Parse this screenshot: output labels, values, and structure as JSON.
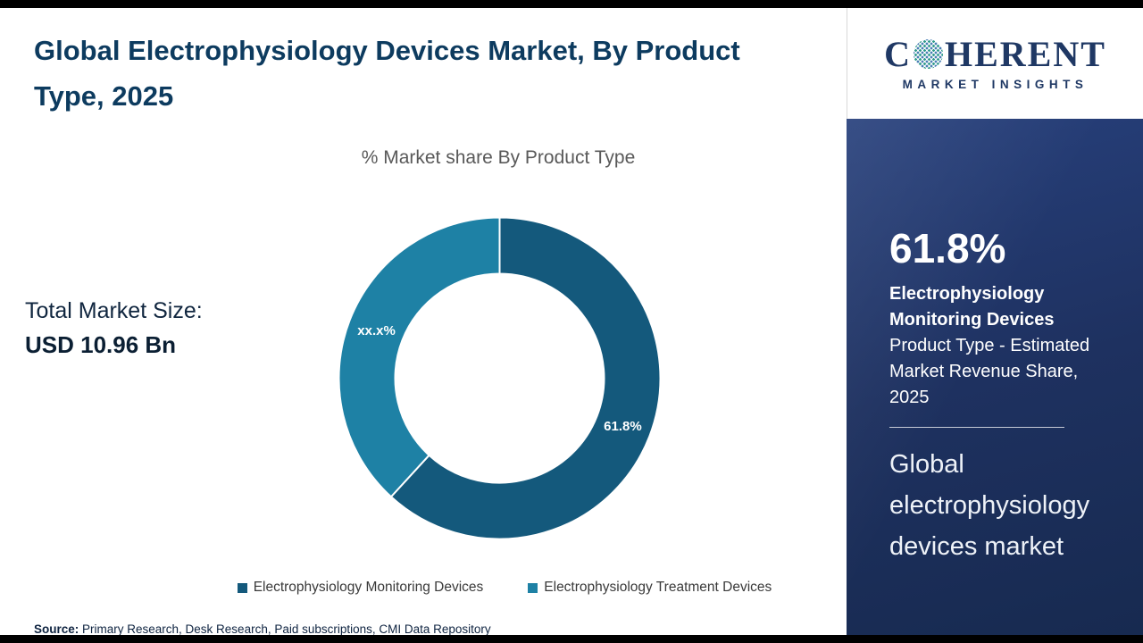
{
  "header": {
    "title": "Global Electrophysiology Devices Market, By Product Type, 2025"
  },
  "chart": {
    "subtitle": "% Market share By Product Type",
    "total_label": "Total Market Size:",
    "total_value": "USD 10.96 Bn"
  },
  "chart_data": {
    "type": "pie",
    "donut": true,
    "title": "% Market share By Product Type",
    "start_angle_deg": 0,
    "direction": "clockwise",
    "legend_position": "bottom",
    "slices": [
      {
        "label": "Electrophysiology Monitoring Devices",
        "value": 61.8,
        "display_label": "61.8%",
        "color": "#14597c"
      },
      {
        "label": "Electrophysiology Treatment Devices",
        "value": 38.2,
        "display_label": "xx.x%",
        "color": "#1e81a5"
      }
    ],
    "annotations": [
      "Total Market Size: USD 10.96 Bn"
    ]
  },
  "source": {
    "label": "Source:",
    "text": " Primary Research, Desk Research, Paid subscriptions, CMI Data Repository"
  },
  "sidebar": {
    "logo": {
      "part1": "C",
      "part2": "HERENT",
      "subtitle": "MARKET INSIGHTS"
    },
    "stat_value": "61.8%",
    "stat_bold": "Electrophysiology Monitoring Devices",
    "stat_desc": "Product Type - Estimated Market Revenue Share, 2025",
    "footer_text": "Global electrophysiology devices market"
  },
  "colors": {
    "title": "#0d3b5f",
    "sidebar_background": "#1e3160",
    "slice_dark": "#14597c",
    "slice_teal": "#1e81a5",
    "top_bottom_bars": "#000000"
  }
}
